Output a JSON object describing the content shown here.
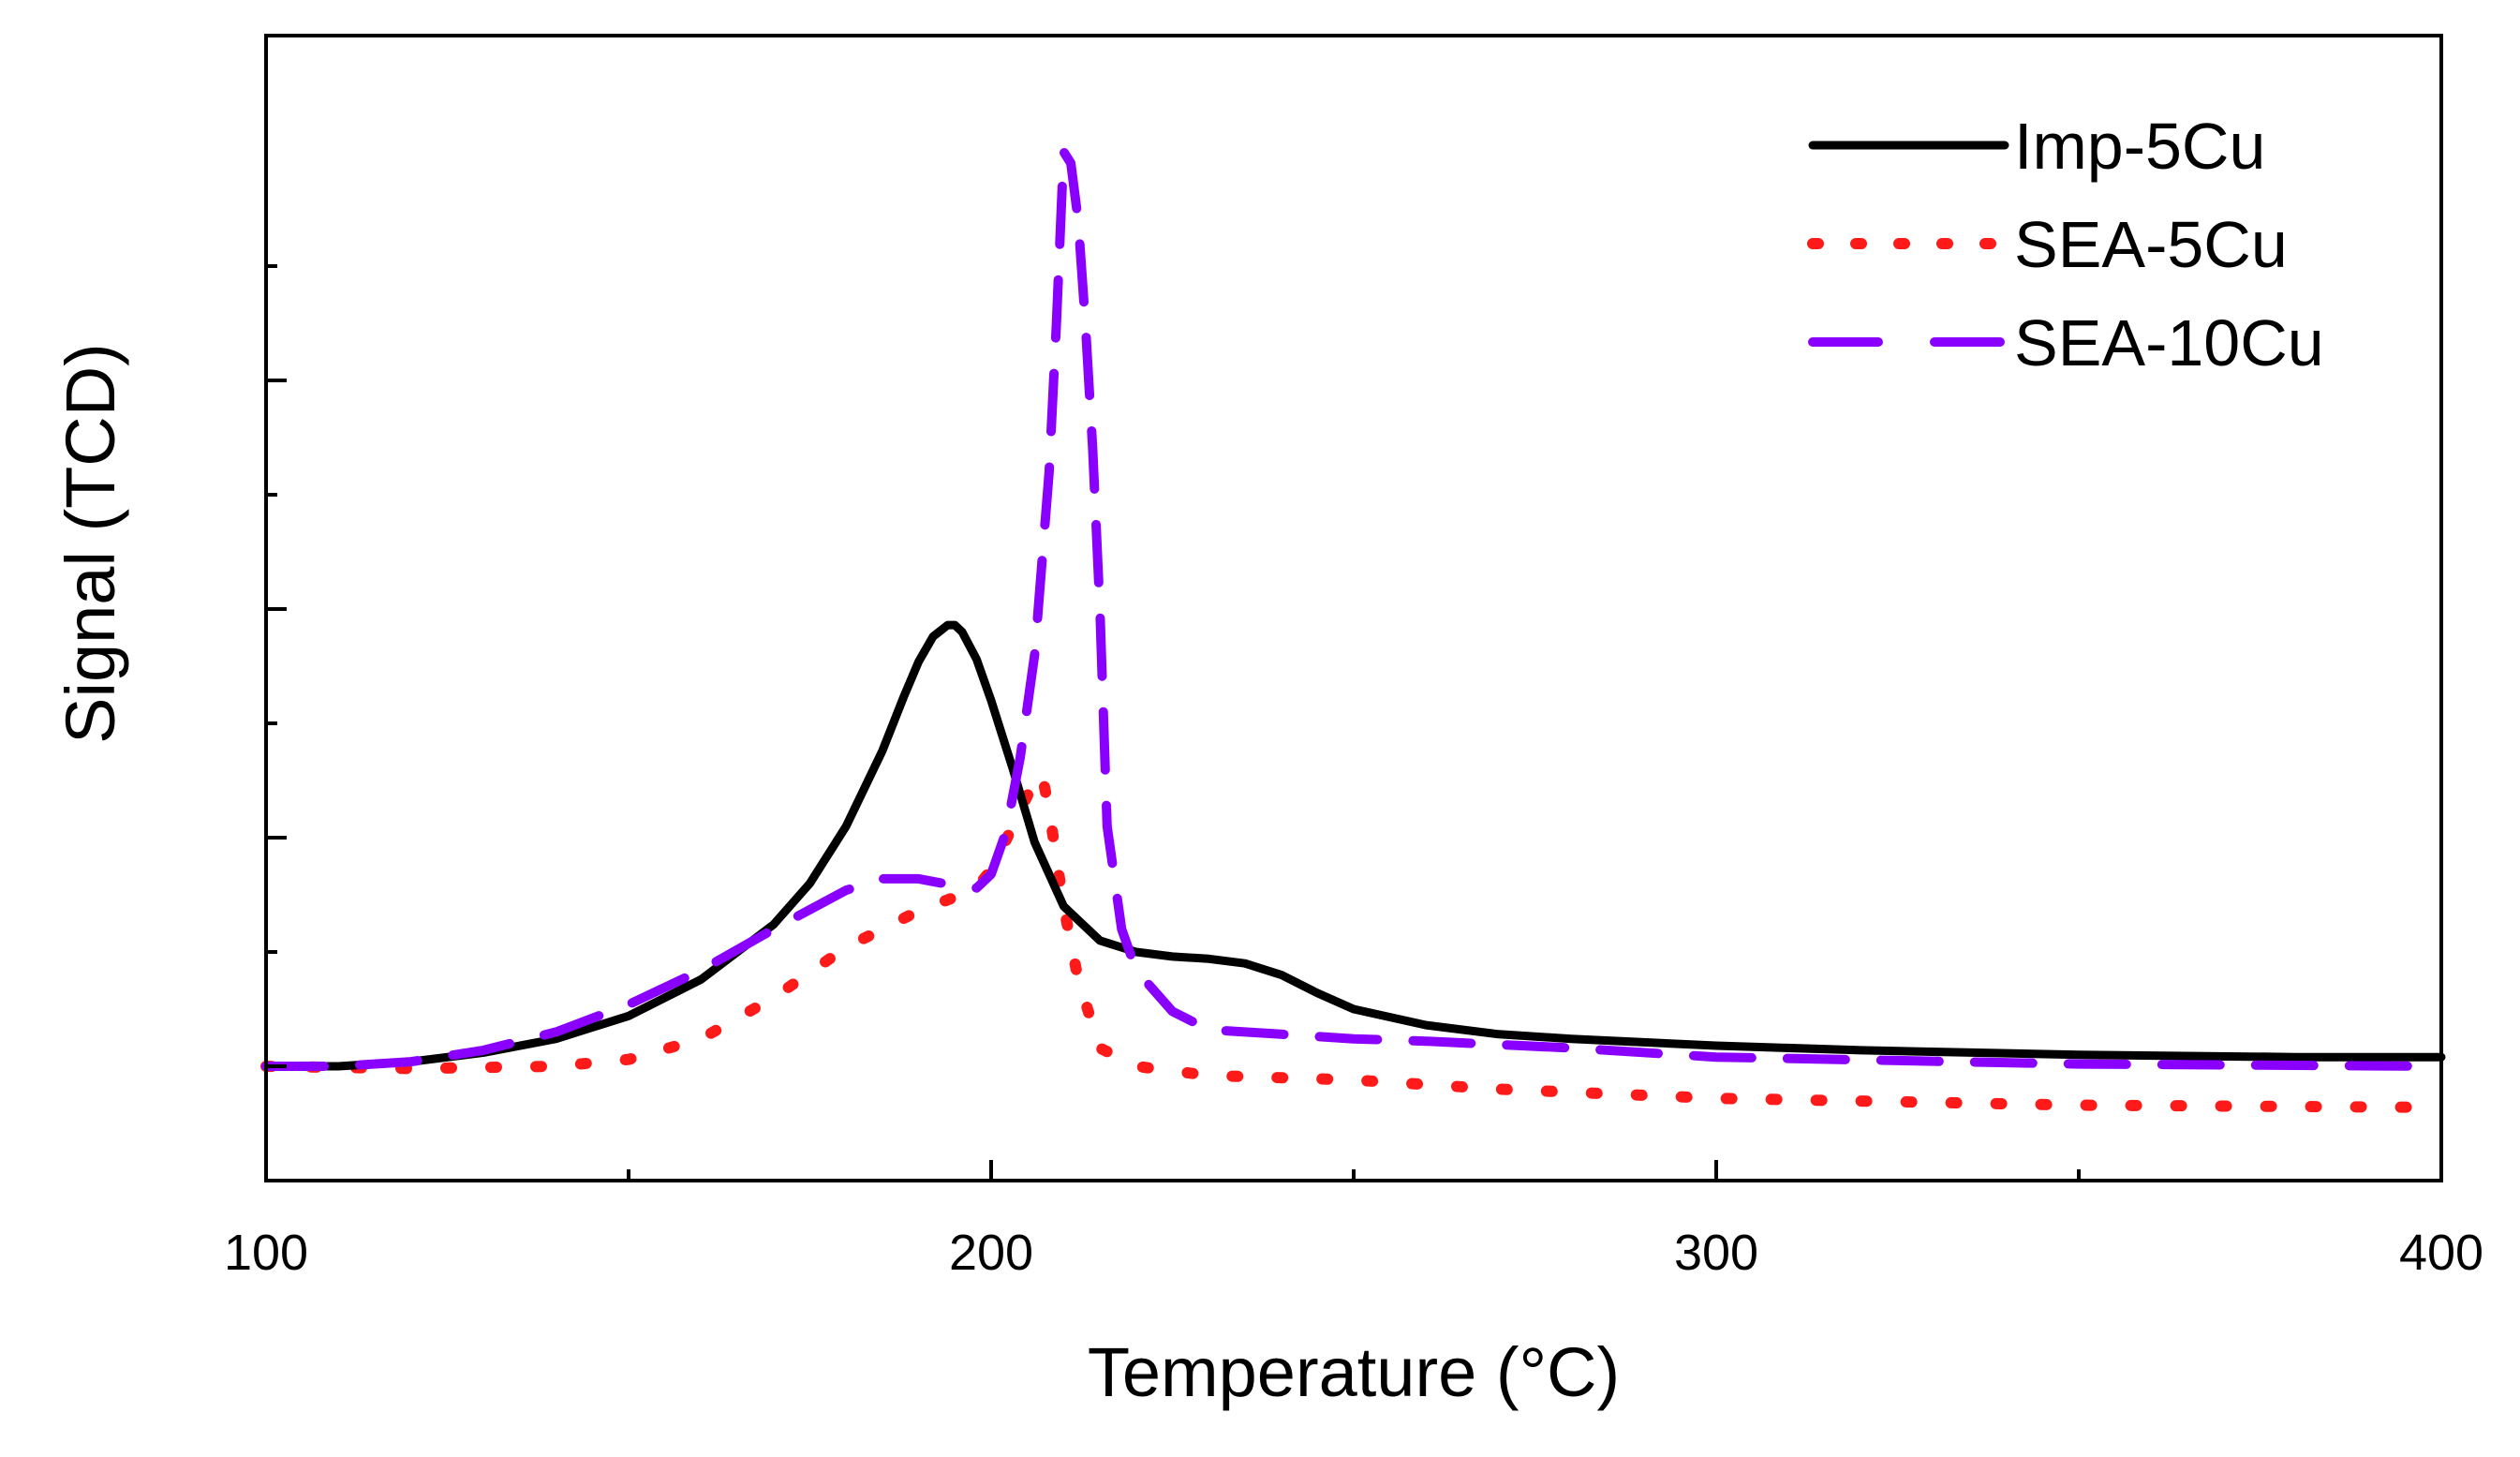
{
  "chart_data": {
    "type": "line",
    "title": "",
    "xlabel": "Temperature (°C)",
    "ylabel": "Signal (TCD)",
    "xlim": [
      100,
      400
    ],
    "ylim": [
      -0.5,
      4.0
    ],
    "xticks": [
      100,
      200,
      300,
      400
    ],
    "xtick_labels": [
      "100",
      "200",
      "300",
      "400"
    ],
    "x_minor_step": 50,
    "y_major": [
      0,
      1,
      2,
      3
    ],
    "y_minor_step": 0.5,
    "grid": false,
    "legend_position": "top-right",
    "series": [
      {
        "name": "Imp-5Cu",
        "color": "#000000",
        "style": "solid",
        "x": [
          100,
          110,
          120,
          130,
          140,
          150,
          160,
          170,
          175,
          180,
          185,
          188,
          190,
          192,
          194,
          195,
          196,
          198,
          200,
          203,
          206,
          210,
          215,
          220,
          225,
          230,
          235,
          240,
          245,
          250,
          260,
          270,
          280,
          300,
          320,
          350,
          380,
          400
        ],
        "y": [
          0.0,
          0.0,
          0.02,
          0.06,
          0.12,
          0.22,
          0.38,
          0.62,
          0.8,
          1.05,
          1.38,
          1.62,
          1.77,
          1.88,
          1.93,
          1.93,
          1.9,
          1.78,
          1.6,
          1.3,
          0.98,
          0.7,
          0.55,
          0.5,
          0.48,
          0.47,
          0.45,
          0.4,
          0.32,
          0.25,
          0.18,
          0.14,
          0.12,
          0.09,
          0.07,
          0.05,
          0.04,
          0.04
        ]
      },
      {
        "name": "SEA-5Cu",
        "color": "#ff1a1a",
        "style": "dotted",
        "x": [
          100,
          120,
          140,
          150,
          160,
          170,
          180,
          190,
          195,
          198,
          200,
          203,
          206,
          207,
          208,
          210,
          212,
          215,
          220,
          225,
          230,
          250,
          270,
          300,
          350,
          400
        ],
        "y": [
          0.0,
          -0.01,
          0.0,
          0.03,
          0.12,
          0.3,
          0.52,
          0.68,
          0.74,
          0.78,
          0.86,
          1.05,
          1.25,
          1.28,
          1.12,
          0.7,
          0.38,
          0.08,
          0.0,
          -0.02,
          -0.04,
          -0.06,
          -0.1,
          -0.14,
          -0.17,
          -0.18
        ]
      },
      {
        "name": "SEA-10Cu",
        "color": "#8a00ff",
        "style": "dashed",
        "x": [
          100,
          110,
          120,
          130,
          140,
          150,
          160,
          170,
          180,
          185,
          190,
          195,
          198,
          200,
          202,
          204,
          206,
          208,
          209,
          210,
          211,
          212,
          213,
          214,
          215,
          216,
          218,
          220,
          225,
          230,
          240,
          250,
          260,
          280,
          300,
          350,
          400
        ],
        "y": [
          0.0,
          0.0,
          0.02,
          0.07,
          0.15,
          0.27,
          0.42,
          0.6,
          0.77,
          0.82,
          0.82,
          0.79,
          0.78,
          0.84,
          1.02,
          1.35,
          1.8,
          2.6,
          3.25,
          4.0,
          3.95,
          3.7,
          3.25,
          2.7,
          2.0,
          1.05,
          0.6,
          0.42,
          0.24,
          0.16,
          0.14,
          0.12,
          0.11,
          0.08,
          0.04,
          0.01,
          0.0
        ]
      }
    ]
  }
}
